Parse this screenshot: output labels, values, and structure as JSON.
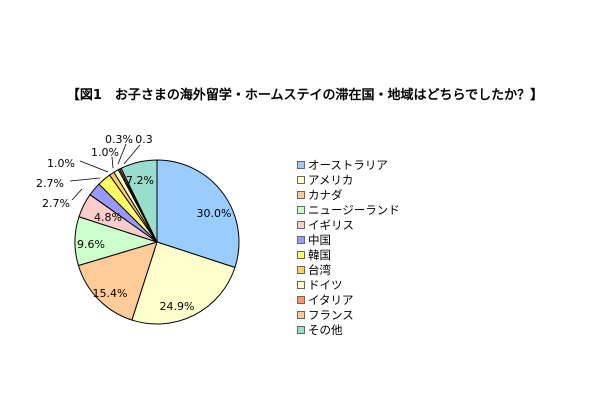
{
  "chart_data": {
    "type": "pie",
    "title": "【図1　お子さまの海外留学・ホームステイの滞在国・地域はどちらでしたか？】",
    "categories": [
      "オーストラリア",
      "アメリカ",
      "カナダ",
      "ニュージーランド",
      "イギリス",
      "中国",
      "韓国",
      "台湾",
      "ドイツ",
      "イタリア",
      "フランス",
      "その他"
    ],
    "values": [
      30.0,
      24.9,
      15.4,
      9.6,
      4.8,
      2.7,
      2.7,
      1.0,
      1.0,
      0.3,
      0.3,
      7.2
    ],
    "value_labels": [
      "30.0%",
      "24.9%",
      "15.4%",
      "9.6%",
      "4.8%",
      "2.7%",
      "2.7%",
      "1.0%",
      "1.0%",
      "0.3%",
      "0.3",
      "7.2%"
    ],
    "colors": [
      "#99ccff",
      "#ffffcc",
      "#ffcc99",
      "#ccffcc",
      "#ffcccc",
      "#9999ff",
      "#ffff66",
      "#ffcc66",
      "#ffffcc",
      "#ff9966",
      "#ffcc99",
      "#99ddcc"
    ],
    "legend_position": "right"
  }
}
